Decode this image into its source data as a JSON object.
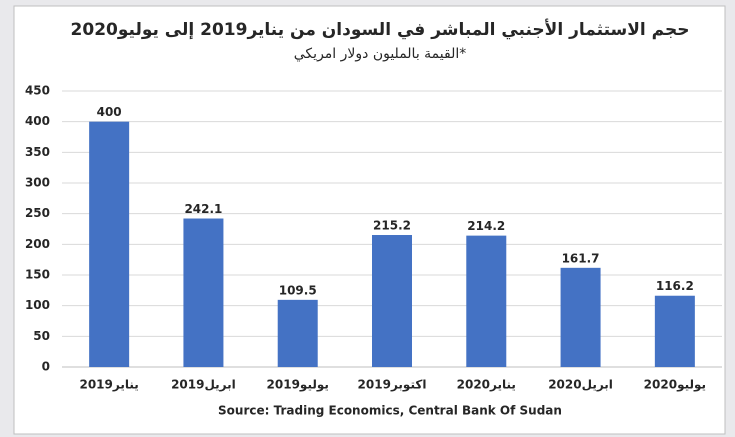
{
  "chart_data": {
    "type": "bar",
    "title": "حجم الاستثمار الأجنبي المباشر في السودان من يناير2019 إلى يوليو2020",
    "subtitle": "*القيمة بالمليون دولار امريكي",
    "categories": [
      "يناير2019",
      "ابريل2019",
      "يوليو2019",
      "اكتوبر2019",
      "يناير2020",
      "ابريل2020",
      "يوليو2020"
    ],
    "values": [
      400,
      242.1,
      109.5,
      215.2,
      214.2,
      161.7,
      116.2
    ],
    "color": "#4472c4",
    "x_label": "Source: Trading Economics, Central Bank Of Sudan",
    "ylim": [
      0,
      450
    ],
    "yticks": [
      0,
      50,
      100,
      150,
      200,
      250,
      300,
      350,
      400,
      450
    ],
    "grid": true
  }
}
